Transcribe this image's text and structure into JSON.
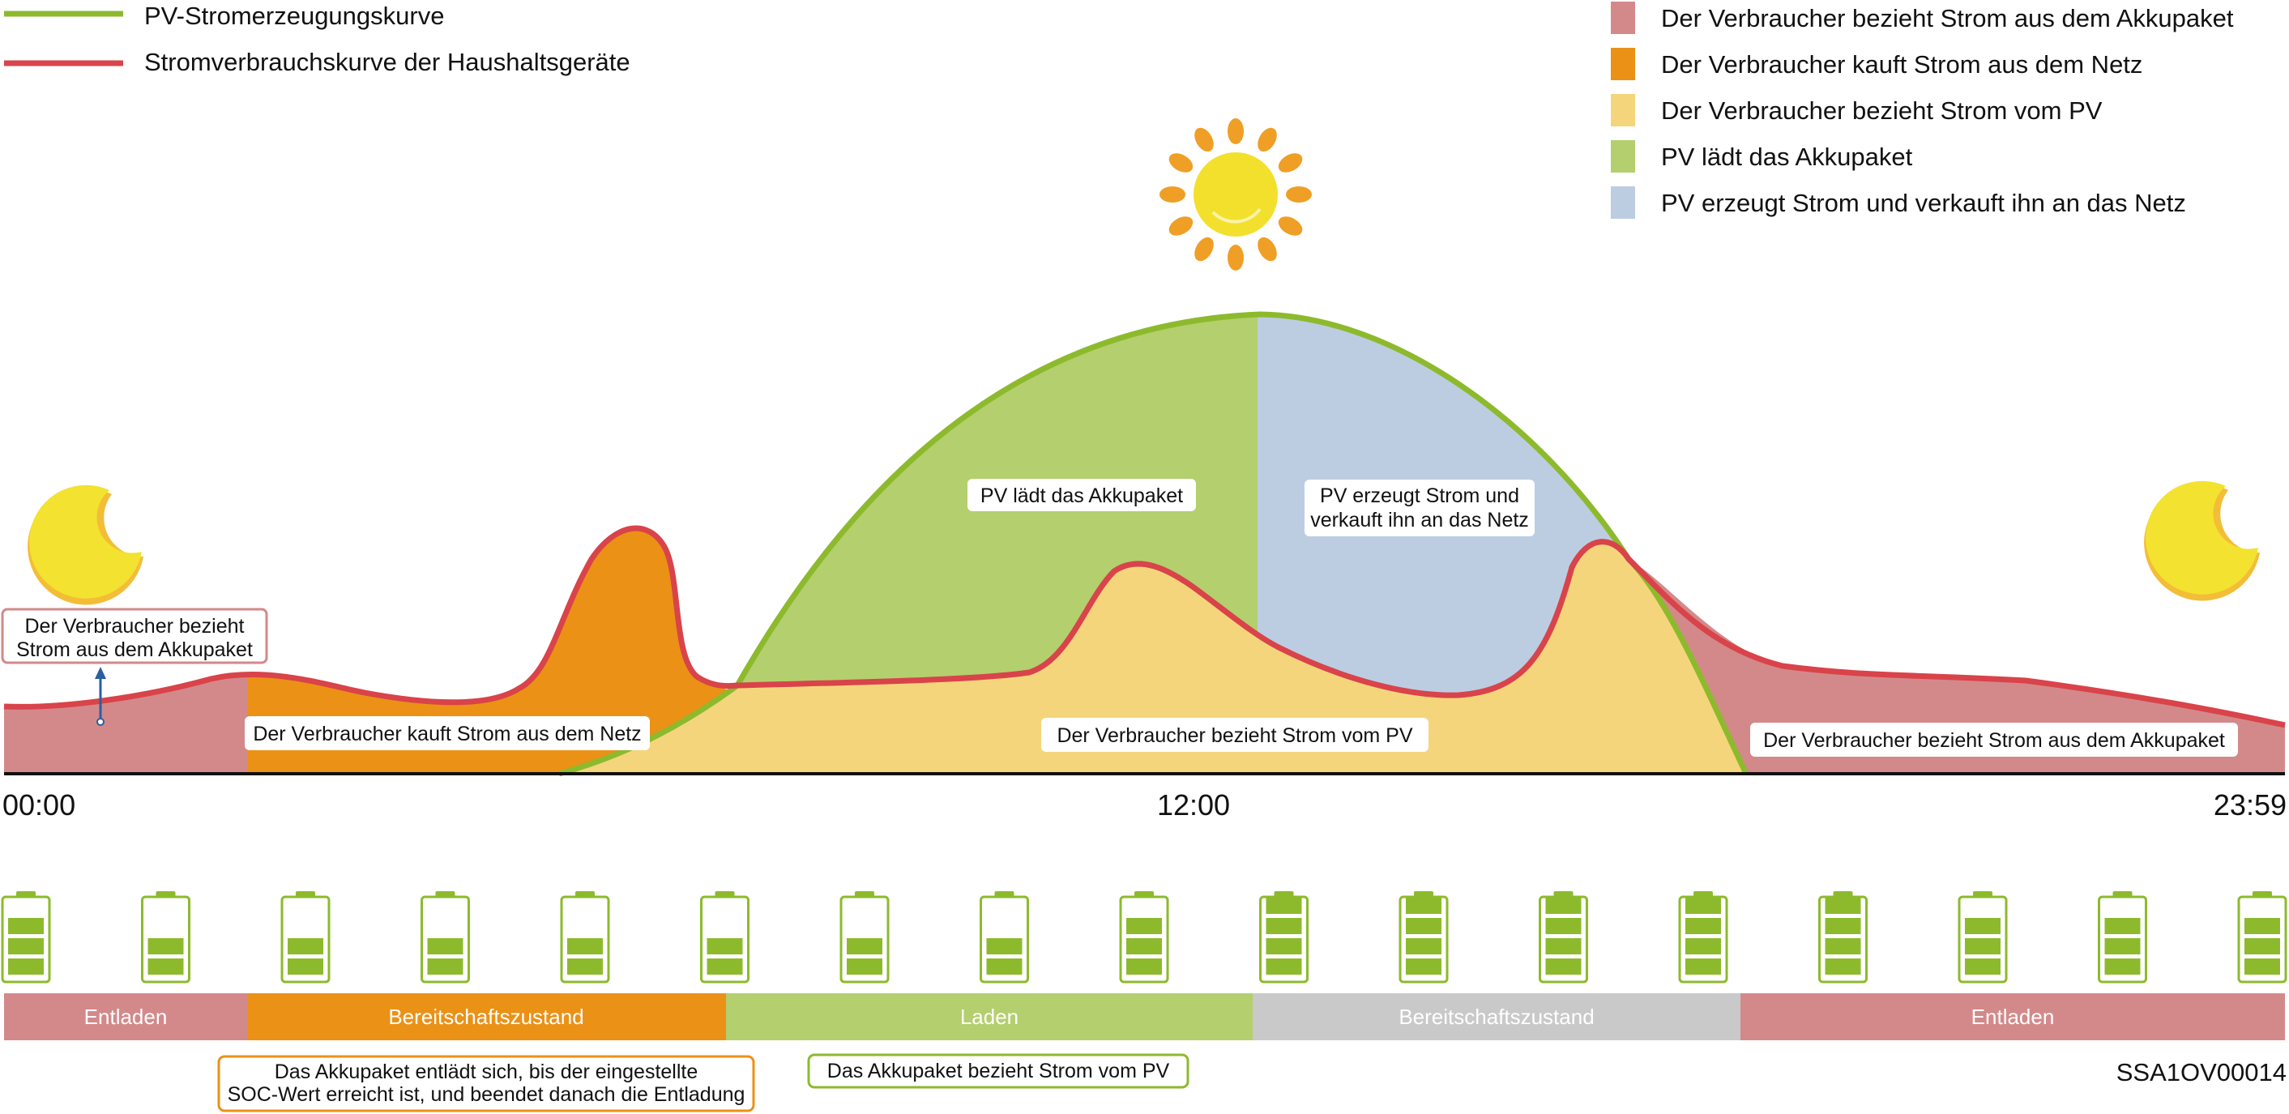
{
  "colors": {
    "pv_curve": "#8dba2d",
    "consumption_curve": "#d9434a",
    "battery_supply": "#d3898a",
    "grid_purchase": "#eb9116",
    "pv_supply": "#f5d57c",
    "pv_charge": "#b4cf6d",
    "pv_sell": "#bccde2",
    "standby_grey": "#c9c9c9",
    "battery_outline": "#8dba2d"
  },
  "legend_left": [
    {
      "label": "PV-Stromerzeugungskurve",
      "color": "#8dba2d"
    },
    {
      "label": "Stromverbrauchskurve der Haushaltsgeräte",
      "color": "#d9434a"
    }
  ],
  "legend_right": [
    {
      "label": "Der Verbraucher bezieht Strom aus dem Akkupaket",
      "color": "#d3898a"
    },
    {
      "label": "Der Verbraucher kauft Strom aus dem Netz",
      "color": "#eb9116"
    },
    {
      "label": "Der Verbraucher bezieht Strom vom PV",
      "color": "#f5d57c"
    },
    {
      "label": "PV lädt das Akkupaket",
      "color": "#b4cf6d"
    },
    {
      "label": "PV erzeugt Strom und verkauft ihn an das Netz",
      "color": "#bccde2"
    }
  ],
  "region_labels": {
    "battery_morning": [
      "Der Verbraucher bezieht",
      "Strom aus dem Akkupaket"
    ],
    "grid": "Der Verbraucher kauft Strom aus dem Netz",
    "pv_charge": "PV lädt das Akkupaket",
    "pv_sell": [
      "PV erzeugt Strom und",
      "verkauft ihn an das Netz"
    ],
    "pv_supply": "Der Verbraucher bezieht Strom vom PV",
    "battery_evening": "Der Verbraucher bezieht Strom aus dem Akkupaket"
  },
  "time_axis": {
    "start": "00:00",
    "mid": "12:00",
    "end": "23:59"
  },
  "battery_levels": [
    3,
    2,
    2,
    2,
    2,
    2,
    2,
    2,
    3,
    4,
    4,
    4,
    4,
    4,
    3,
    3,
    3
  ],
  "state_bar": [
    {
      "label": "Entladen",
      "color": "#d3898a"
    },
    {
      "label": "Bereitschaftszustand",
      "color": "#eb9116"
    },
    {
      "label": "Laden",
      "color": "#b4cf6d"
    },
    {
      "label": "Bereitschaftszustand",
      "color": "#c9c9c9"
    },
    {
      "label": "Entladen",
      "color": "#d3898a"
    }
  ],
  "notes": {
    "soc": [
      "Das Akkupaket entlädt sich, bis der eingestellte",
      "SOC-Wert erreicht ist, und beendet danach die Entladung"
    ],
    "pv": "Das Akkupaket bezieht Strom vom PV"
  },
  "code": "SSA1OV00014"
}
